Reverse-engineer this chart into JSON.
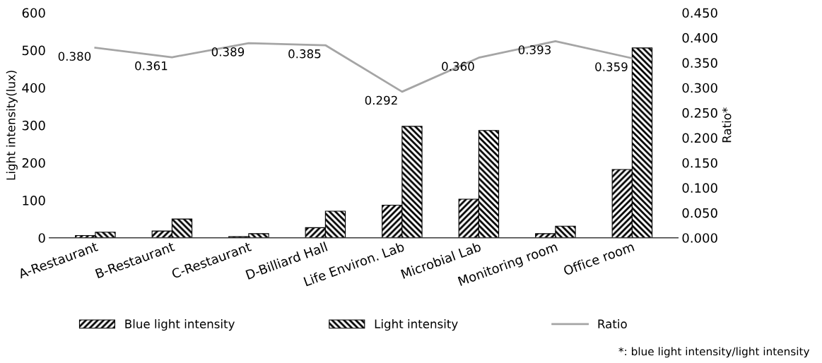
{
  "chart_data": {
    "type": "bar",
    "ylabel": "Light intensity(lux)",
    "y2label": "Ratio*",
    "categories": [
      "A-Restaurant",
      "B-Restaurant",
      "C-Restaurant",
      "D-Billiard Hall",
      "Life Environ. Lab",
      "Microbial Lab",
      "Monitoring room",
      "Office room"
    ],
    "series": [
      {
        "name": "Blue light intensity",
        "color": "#000000",
        "values": [
          6,
          18,
          3,
          27,
          87,
          103,
          11,
          182
        ]
      },
      {
        "name": "Light intensity",
        "color": "#000000",
        "values": [
          15,
          50,
          11,
          71,
          297,
          286,
          31,
          506
        ]
      },
      {
        "name": "Ratio",
        "type": "line",
        "axis": "y2",
        "color": "#a5a5a5",
        "values": [
          0.38,
          0.361,
          0.389,
          0.385,
          0.292,
          0.36,
          0.393,
          0.359
        ],
        "value_labels": [
          "0.380",
          "0.361",
          "0.389",
          "0.385",
          "0.292",
          "0.360",
          "0.393",
          "0.359"
        ]
      }
    ],
    "ylim": [
      0,
      600
    ],
    "yticks": [
      0,
      100,
      200,
      300,
      400,
      500,
      600
    ],
    "y2lim": [
      0,
      0.45
    ],
    "y2ticks": [
      {
        "value": 0,
        "label": "0.000"
      },
      {
        "value": 0.05,
        "label": "0.050"
      },
      {
        "value": 0.1,
        "label": "0.100"
      },
      {
        "value": 0.15,
        "label": "0.150"
      },
      {
        "value": 0.2,
        "label": "0.200"
      },
      {
        "value": 0.25,
        "label": "0.250"
      },
      {
        "value": 0.3,
        "label": "0.300"
      },
      {
        "value": 0.35,
        "label": "0.350"
      },
      {
        "value": 0.4,
        "label": "0.400"
      },
      {
        "value": 0.45,
        "label": "0.450"
      }
    ],
    "grid": false,
    "legend": "bottom",
    "annotations": [
      "*: blue light intensity/light intensity"
    ]
  }
}
